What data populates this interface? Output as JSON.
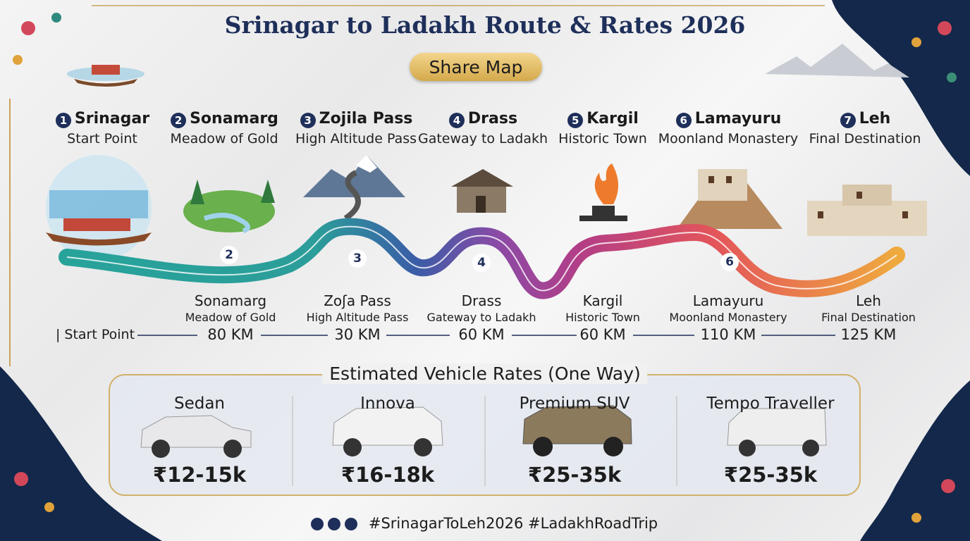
{
  "header": {
    "title": "Srinagar to Ladakh Route & Rates 2026",
    "share_button": "Share Map"
  },
  "stops": [
    {
      "number": "1",
      "name": "Srinagar",
      "subtitle": "Start Point"
    },
    {
      "number": "2",
      "name": "Sonamarg",
      "subtitle": "Meadow of Gold"
    },
    {
      "number": "3",
      "name": "Zojila Pass",
      "subtitle": "High Altitude Pass"
    },
    {
      "number": "4",
      "name": "Drass",
      "subtitle": "Gateway to Ladakh"
    },
    {
      "number": "5",
      "name": "Kargil",
      "subtitle": "Historic Town"
    },
    {
      "number": "6",
      "name": "Lamayuru",
      "subtitle": "Moonland Monastery"
    },
    {
      "number": "7",
      "name": "Leh",
      "subtitle": "Final Destination"
    }
  ],
  "road_markers": [
    "2",
    "3",
    "4",
    "6"
  ],
  "distances": {
    "start": "| Start Point",
    "legs": [
      {
        "name": "Sonamarg",
        "subtitle": "Meadow of Gold",
        "distance": "80 KM"
      },
      {
        "name": "Zoʃa Pass",
        "subtitle": "High Altitude Pass",
        "distance": "30 KM"
      },
      {
        "name": "Drass",
        "subtitle": "Gateway to Ladakh",
        "distance": "60 KM"
      },
      {
        "name": "Kargil",
        "subtitle": "Historic Town",
        "distance": "60 KM"
      },
      {
        "name": "Lamayuru",
        "subtitle": "Moonland Monastery",
        "distance": "110 KM"
      },
      {
        "name": "Leh",
        "subtitle": "Final Destination",
        "distance": "125 KM"
      }
    ]
  },
  "rates": {
    "title": "Estimated Vehicle Rates (One Way)",
    "vehicles": [
      {
        "name": "Sedan",
        "price": "₹12-15k"
      },
      {
        "name": "Innova",
        "price": "₹16-18k"
      },
      {
        "name": "Premium SUV",
        "price": "₹25-35k"
      },
      {
        "name": "Tempo Traveller",
        "price": "₹25-35k"
      }
    ]
  },
  "footer": {
    "hashtags": "#SrinagarToLeh2026 #LadakhRoadTrip"
  }
}
